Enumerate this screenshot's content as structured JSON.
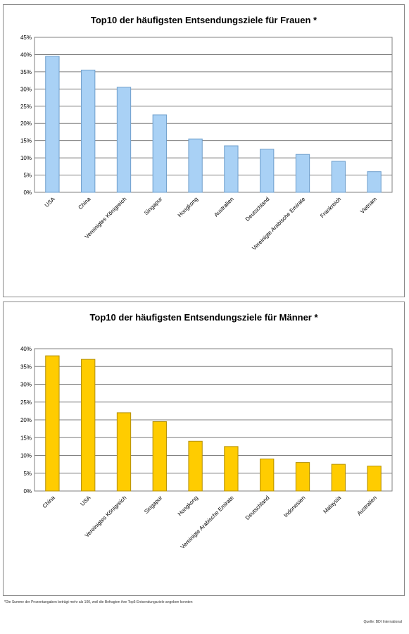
{
  "chart_data": [
    {
      "type": "bar",
      "title": "Top10 der häufigsten Entsendungsziele für Frauen *",
      "categories": [
        "USA",
        "China",
        "Vereinigtes Königreich",
        "Singapur",
        "Hongkong",
        "Australien",
        "Deutschland",
        "Vereinigte Arabische Emirate",
        "Frankreich",
        "Vietnam"
      ],
      "values": [
        39.5,
        35.5,
        30.5,
        22.5,
        15.5,
        13.5,
        12.5,
        11,
        9,
        6
      ],
      "ylim": [
        0,
        45
      ],
      "yticks": [
        "0%",
        "5%",
        "10%",
        "15%",
        "20%",
        "25%",
        "30%",
        "35%",
        "40%",
        "45%"
      ],
      "color": "#a9d1f5",
      "edge": "#6f9fcc",
      "grid": true,
      "legend": "none"
    },
    {
      "type": "bar",
      "title": "Top10 der häufigsten Entsendungsziele für Männer *",
      "categories": [
        "China",
        "USA",
        "Vereinigtes Königreich",
        "Singapur",
        "Hongkong",
        "Vereinigte Arabische Emirate",
        "Deutschland",
        "Indonesien",
        "Malaysia",
        "Australien"
      ],
      "values": [
        38,
        37,
        22,
        19.5,
        14,
        12.5,
        9,
        8,
        7.5,
        7
      ],
      "ylim": [
        0,
        40
      ],
      "yticks": [
        "0%",
        "5%",
        "10%",
        "15%",
        "20%",
        "25%",
        "30%",
        "35%",
        "40%"
      ],
      "color": "#ffcc00",
      "edge": "#b38f00",
      "grid": true,
      "legend": "none"
    }
  ],
  "footnote": "*Die Summe der Prozentangaben beträgt mehr als 100, weil die Befragten ihre Top5-Entsendungsziele angeben konnten",
  "source": "Quelle: BDI International"
}
